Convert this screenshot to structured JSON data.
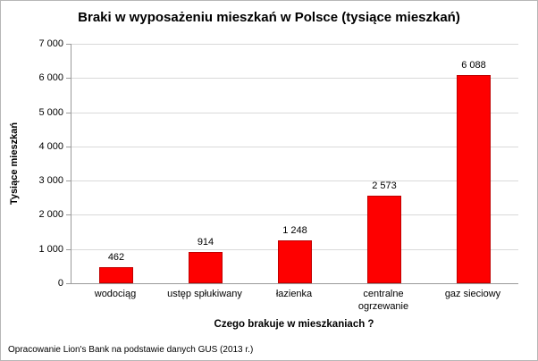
{
  "footer_text": "Opracowanie Lion's Bank na podstawie danych GUS (2013 r.)",
  "chart_data": {
    "type": "bar",
    "title": "Braki w wyposażeniu mieszkań w Polsce (tysiące mieszkań)",
    "categories": [
      "wodociąg",
      "ustęp spłukiwany",
      "łazienka",
      "centralne ogrzewanie",
      "gaz sieciowy"
    ],
    "values": [
      462,
      914,
      1248,
      2573,
      6088
    ],
    "value_labels": [
      "462",
      "914",
      "1 248",
      "2 573",
      "6 088"
    ],
    "xlabel": "Czego brakuje w mieszkaniach ?",
    "ylabel": "Tysiące mieszkań",
    "ylim": [
      0,
      7000
    ],
    "ytick_step": 1000,
    "ytick_labels": [
      "0",
      "1 000",
      "2 000",
      "3 000",
      "4 000",
      "5 000",
      "6 000",
      "7 000"
    ],
    "grid": true,
    "legend": "none",
    "bar_color": "#fe0000",
    "bar_border_color": "#c00000"
  }
}
